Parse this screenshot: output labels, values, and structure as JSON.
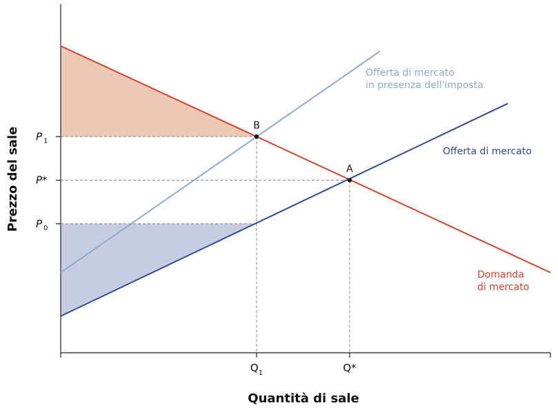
{
  "chart_data": {
    "type": "line",
    "title": "",
    "xlabel": "Quantità di sale",
    "ylabel": "Prezzo del sale",
    "xlim": [
      0,
      100
    ],
    "ylim": [
      0,
      100
    ],
    "grid": false,
    "series": [
      {
        "name": "Domanda di mercato",
        "label_lines": [
          "Domanda",
          "di mercato"
        ],
        "color": "#d9412b",
        "points": [
          [
            0,
            88
          ],
          [
            100,
            23
          ]
        ]
      },
      {
        "name": "Offerta di mercato",
        "label_lines": [
          "Offerta di mercato"
        ],
        "color": "#2c4a9a",
        "points": [
          [
            0,
            10.5
          ],
          [
            91.3,
            71.5
          ]
        ]
      },
      {
        "name": "Offerta di mercato in presenza dell'imposta",
        "label_lines": [
          "Offerta di mercato",
          "in presenza dell'imposta"
        ],
        "color": "#8eaad4",
        "points": [
          [
            0,
            23
          ],
          [
            65.2,
            86.5
          ]
        ]
      }
    ],
    "shaded_areas": [
      {
        "name": "consumer-surplus",
        "color": "#ecc8b6",
        "points": [
          [
            0,
            88
          ],
          [
            40,
            62
          ],
          [
            0,
            62
          ]
        ]
      },
      {
        "name": "producer-surplus",
        "color": "#c6cde1",
        "points": [
          [
            0,
            37
          ],
          [
            40,
            37
          ],
          [
            0,
            10.5
          ]
        ]
      }
    ],
    "points": [
      {
        "label": "B",
        "x": 40,
        "y": 62
      },
      {
        "label": "A",
        "x": 59,
        "y": 49.5
      }
    ],
    "guides": [
      {
        "from": [
          0,
          62
        ],
        "to": [
          40,
          62
        ]
      },
      {
        "from": [
          40,
          62
        ],
        "to": [
          40,
          0
        ]
      },
      {
        "from": [
          0,
          49.5
        ],
        "to": [
          59,
          49.5
        ]
      },
      {
        "from": [
          59,
          49.5
        ],
        "to": [
          59,
          0
        ]
      },
      {
        "from": [
          0,
          37
        ],
        "to": [
          40,
          37
        ]
      }
    ],
    "x_ticks": [
      {
        "x": 40,
        "main": "Q",
        "sub": "1"
      },
      {
        "x": 59,
        "main": "Q*",
        "sub": ""
      }
    ],
    "y_ticks": [
      {
        "y": 62,
        "main": "P",
        "sub": "1"
      },
      {
        "y": 49.5,
        "main": "P*",
        "sub": ""
      },
      {
        "y": 37,
        "main": "P",
        "sub": "0"
      }
    ]
  }
}
